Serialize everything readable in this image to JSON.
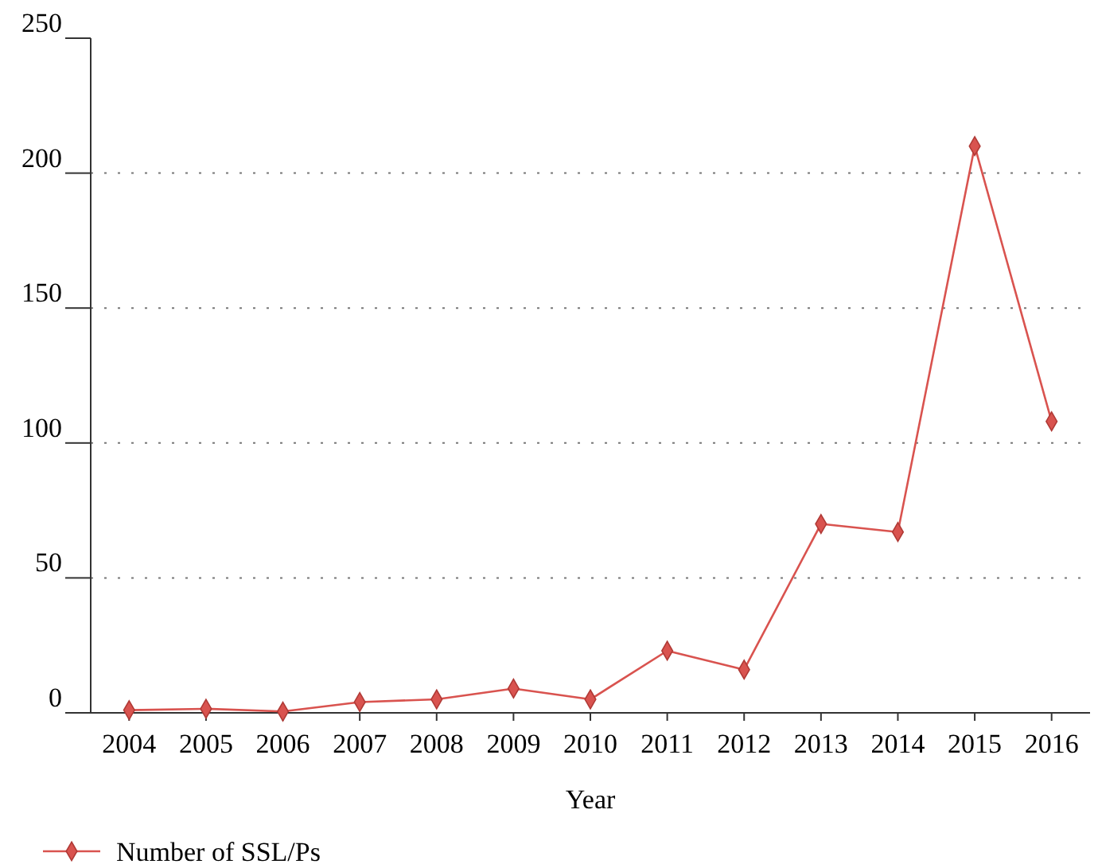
{
  "chart_data": {
    "type": "line",
    "xlabel": "Year",
    "categories": [
      "2004",
      "2005",
      "2006",
      "2007",
      "2008",
      "2009",
      "2010",
      "2011",
      "2012",
      "2013",
      "2014",
      "2015",
      "2016"
    ],
    "series": [
      {
        "name": "Number of SSL/Ps",
        "color": "#d9534f",
        "values": [
          1,
          1.5,
          0.5,
          4,
          5,
          9,
          5,
          23,
          16,
          70,
          67,
          210,
          108
        ]
      }
    ],
    "ylim": [
      0,
      250
    ],
    "yticks": [
      0,
      50,
      100,
      150,
      200,
      250
    ],
    "grid": "y",
    "legend": "bottom left",
    "marker": "diamond",
    "line_style": "solid"
  }
}
